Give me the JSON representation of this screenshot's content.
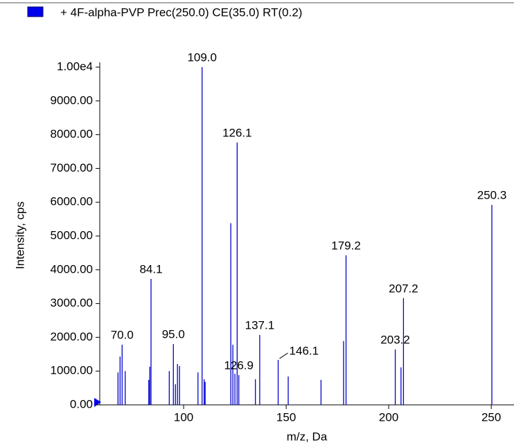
{
  "chart_data": {
    "type": "stem",
    "legend_label": "+ 4F-alpha-PVP Prec(250.0) CE(35.0) RT(0.2)",
    "color": "#0000cc",
    "x_label": "m/z, Da",
    "y_label": "Intensity, cps",
    "x": [
      68.0,
      69.0,
      70.0,
      71.5,
      83.0,
      83.5,
      84.1,
      93.0,
      95.0,
      96.0,
      97.0,
      98.0,
      107.0,
      109.0,
      110.0,
      110.5,
      123.0,
      124.0,
      125.0,
      126.1,
      126.9,
      135.0,
      137.1,
      146.1,
      151.0,
      167.0,
      178.0,
      179.2,
      203.2,
      206.0,
      207.2,
      250.3
    ],
    "values": [
      960,
      1430,
      1780,
      1000,
      740,
      1130,
      3730,
      1000,
      1800,
      610,
      1210,
      1150,
      960,
      10000,
      760,
      680,
      5380,
      1780,
      920,
      7770,
      880,
      760,
      2070,
      1330,
      840,
      740,
      1890,
      4430,
      1640,
      1110,
      3160,
      5920
    ],
    "peak_labels": [
      null,
      null,
      "70.0",
      null,
      null,
      null,
      "84.1",
      null,
      "95.0",
      null,
      null,
      null,
      null,
      "109.0",
      null,
      null,
      null,
      null,
      null,
      "126.1",
      "126.9",
      null,
      "137.1",
      "146.1",
      null,
      null,
      null,
      "179.2",
      "203.2",
      null,
      "207.2",
      "250.3"
    ],
    "xlim": [
      59.1,
      261.1
    ],
    "xticks": [
      100,
      150,
      200,
      250
    ],
    "ylim": [
      0,
      10000
    ],
    "yticks": [
      {
        "value": 0,
        "label": "0.00"
      },
      {
        "value": 1000,
        "label": "1000.00"
      },
      {
        "value": 2000,
        "label": "2000.00"
      },
      {
        "value": 3000,
        "label": "3000.00"
      },
      {
        "value": 4000,
        "label": "4000.00"
      },
      {
        "value": 5000,
        "label": "5000.00"
      },
      {
        "value": 6000,
        "label": "6000.00"
      },
      {
        "value": 7000,
        "label": "7000.00"
      },
      {
        "value": 8000,
        "label": "8000.00"
      },
      {
        "value": 9000,
        "label": "9000.00"
      },
      {
        "value": 10000,
        "label": "1.00e4"
      }
    ]
  }
}
